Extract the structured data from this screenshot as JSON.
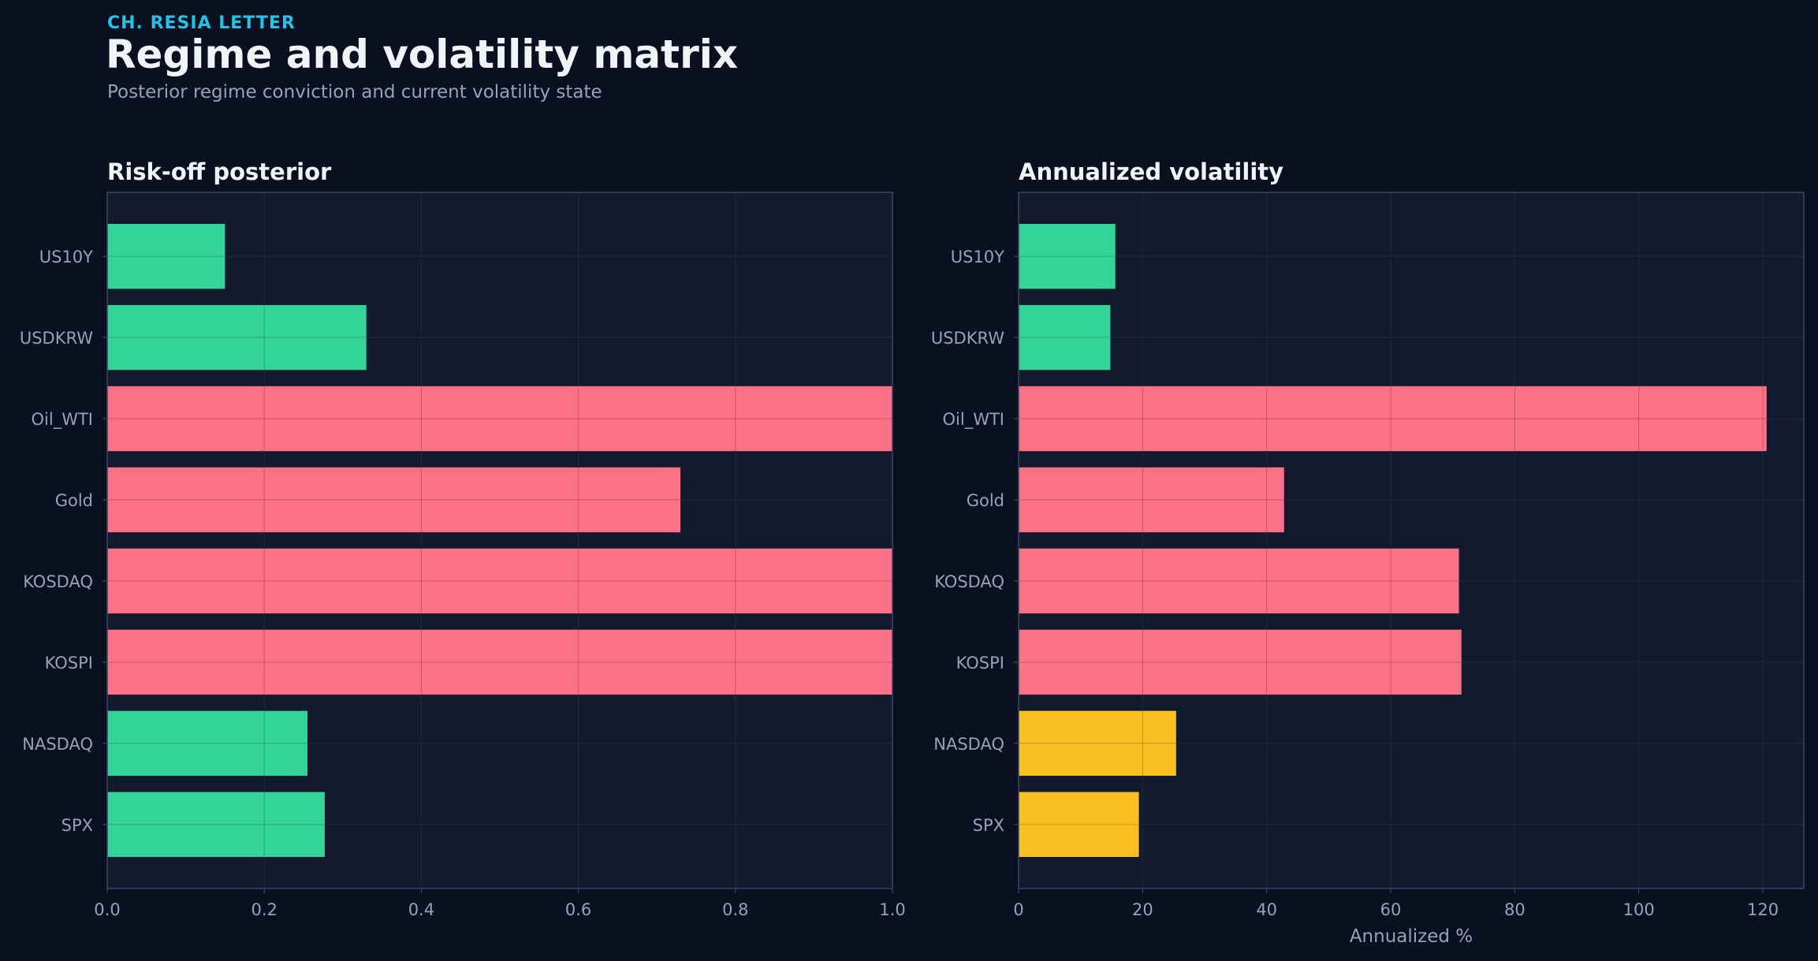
{
  "header": {
    "kicker": "CH. RESIA LETTER",
    "title": "Regime and volatility matrix",
    "subtitle": "Posterior regime conviction and current volatility state"
  },
  "colors": {
    "background": "#0a1020",
    "panel": "#121a2e",
    "panel_border": "#3b4666",
    "grid": "#243049",
    "kicker": "#22c3e6",
    "title": "#f1f3f8",
    "muted": "#98a1b8",
    "green": "#34d399",
    "red": "#fb7185",
    "amber": "#fbbf24"
  },
  "chart_data": [
    {
      "type": "bar",
      "orientation": "horizontal",
      "title": "Risk-off posterior",
      "xlabel": "",
      "ylabel": "",
      "categories": [
        "US10Y",
        "USDKRW",
        "Oil_WTI",
        "Gold",
        "KOSDAQ",
        "KOSPI",
        "NASDAQ",
        "SPX"
      ],
      "values": [
        0.15,
        0.33,
        1.0,
        0.73,
        1.0,
        1.0,
        0.255,
        0.277
      ],
      "bar_colors": [
        "green",
        "green",
        "red",
        "red",
        "red",
        "red",
        "green",
        "green"
      ],
      "xlim": [
        0,
        1.0
      ],
      "xticks": [
        0.0,
        0.2,
        0.4,
        0.6,
        0.8,
        1.0
      ],
      "xtick_labels": [
        "0.0",
        "0.2",
        "0.4",
        "0.6",
        "0.8",
        "1.0"
      ],
      "grid": true
    },
    {
      "type": "bar",
      "orientation": "horizontal",
      "title": "Annualized volatility",
      "xlabel": "Annualized %",
      "ylabel": "",
      "categories": [
        "US10Y",
        "USDKRW",
        "Oil_WTI",
        "Gold",
        "KOSDAQ",
        "KOSPI",
        "NASDAQ",
        "SPX"
      ],
      "values": [
        15.6,
        14.8,
        120.6,
        42.8,
        71.0,
        71.4,
        25.4,
        19.4
      ],
      "bar_colors": [
        "green",
        "green",
        "red",
        "red",
        "red",
        "red",
        "amber",
        "amber"
      ],
      "xlim": [
        0,
        126.6
      ],
      "xticks": [
        0,
        20,
        40,
        60,
        80,
        100,
        120
      ],
      "xtick_labels": [
        "0",
        "20",
        "40",
        "60",
        "80",
        "100",
        "120"
      ],
      "grid": true
    }
  ]
}
